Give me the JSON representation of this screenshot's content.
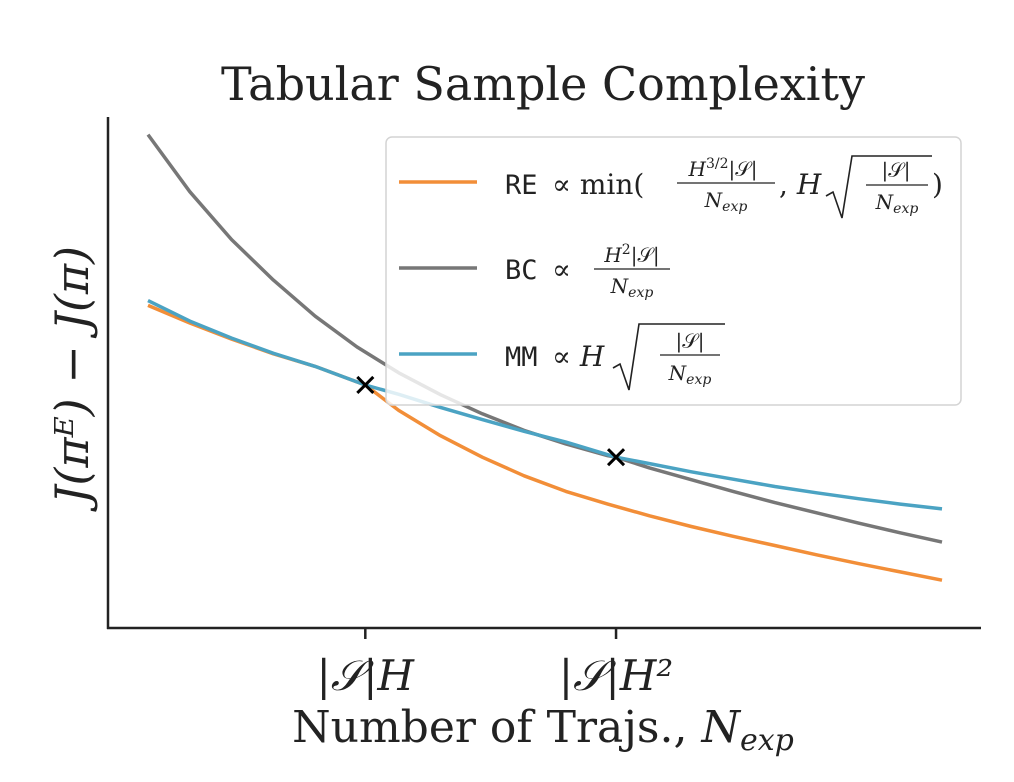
{
  "chart_data": {
    "type": "line",
    "title": "Tabular Sample Complexity",
    "xlabel": "Number of Trajs., ",
    "xlabel_sym": "N",
    "xlabel_sub": "exp",
    "ylabel": "J(πᴱ) − J(π)",
    "xlim": [
      0,
      10
    ],
    "ylim": [
      0,
      10
    ],
    "xticks": [
      {
        "value": 2.6,
        "text": "|𝒮|H"
      },
      {
        "value": 5.6,
        "text": "|𝒮|H²"
      }
    ],
    "series": [
      {
        "name": "RE",
        "color": "#f28e38",
        "x": [
          0,
          0.5,
          1,
          1.5,
          2,
          2.6,
          3,
          3.5,
          4,
          4.5,
          5,
          5.5,
          6,
          6.5,
          7,
          7.5,
          8,
          8.5,
          9,
          9.5
        ],
        "y": [
          6.2,
          5.84,
          5.51,
          5.21,
          4.95,
          4.57,
          4.05,
          3.53,
          3.09,
          2.71,
          2.39,
          2.13,
          1.89,
          1.67,
          1.47,
          1.28,
          1.09,
          0.91,
          0.74,
          0.57
        ]
      },
      {
        "name": "BC",
        "color": "#777777",
        "x": [
          0,
          0.5,
          1,
          1.5,
          2,
          2.5,
          3,
          3.5,
          4,
          4.5,
          5,
          5.5,
          5.6,
          6,
          6.5,
          7,
          7.5,
          8,
          8.5,
          9,
          9.5
        ],
        "y": [
          9.7,
          8.53,
          7.55,
          6.72,
          5.98,
          5.35,
          4.82,
          4.37,
          3.98,
          3.64,
          3.36,
          3.12,
          3.09,
          2.87,
          2.63,
          2.39,
          2.16,
          1.95,
          1.74,
          1.54,
          1.35
        ]
      },
      {
        "name": "MM",
        "color": "#4ba3c3",
        "x": [
          0,
          0.5,
          1,
          1.5,
          2,
          2.6,
          3,
          3.5,
          4,
          4.5,
          5,
          5.6,
          6,
          6.5,
          7,
          7.5,
          8,
          8.5,
          9,
          9.5
        ],
        "y": [
          6.3,
          5.88,
          5.53,
          5.22,
          4.95,
          4.57,
          4.38,
          4.11,
          3.86,
          3.62,
          3.4,
          3.09,
          2.96,
          2.79,
          2.64,
          2.49,
          2.36,
          2.24,
          2.13,
          2.03
        ]
      }
    ],
    "markers": [
      {
        "x": 2.6,
        "y": 4.57
      },
      {
        "x": 5.6,
        "y": 3.09
      }
    ],
    "legend": {
      "placement": "top-right",
      "entries": [
        {
          "code": "RE",
          "formula": "∝ min(H³ᐟ²|𝒮|/Nₑₓₚ, H√(|𝒮|/Nₑₓₚ))"
        },
        {
          "code": "BC",
          "formula": "∝ H²|𝒮|/Nₑₓₚ"
        },
        {
          "code": "MM",
          "formula": "∝ H√(|𝒮|/Nₑₓₚ)"
        }
      ]
    },
    "grid": false
  }
}
